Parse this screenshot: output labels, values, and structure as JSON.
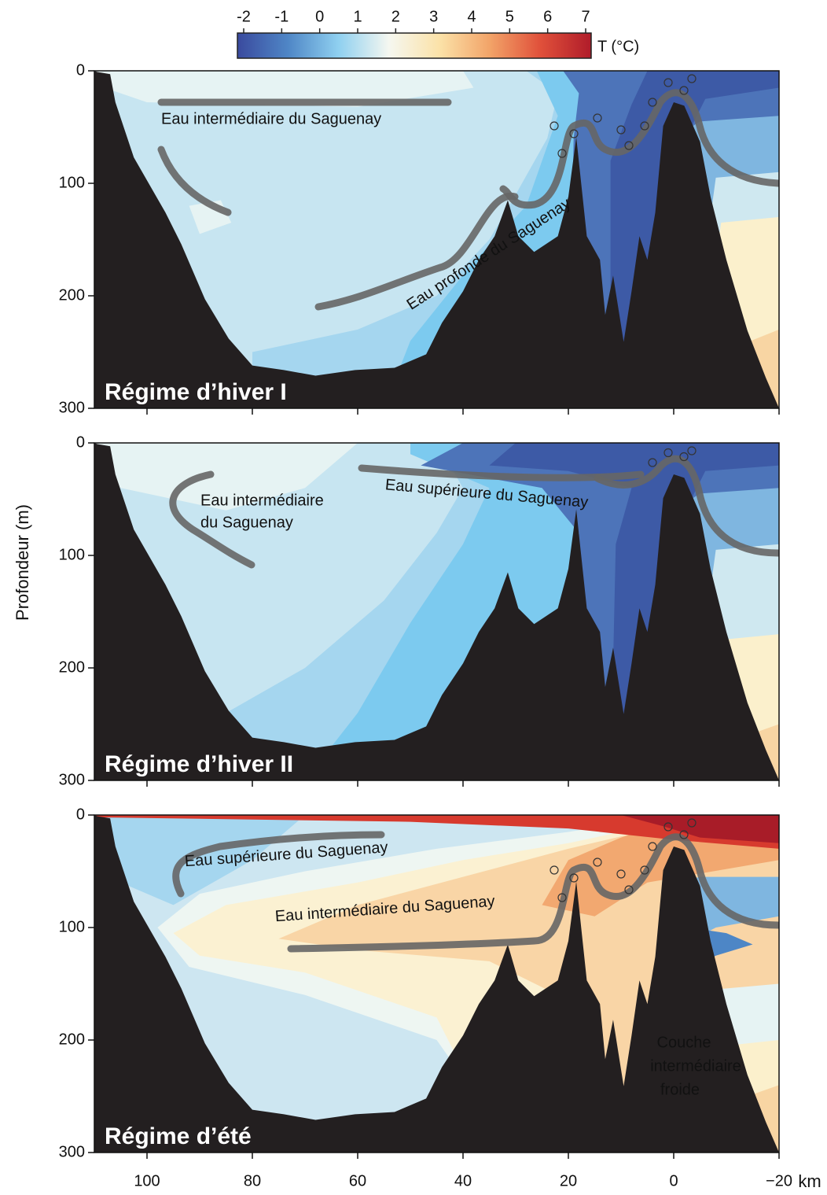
{
  "y_label": "Profondeur (m)",
  "x_unit": "km",
  "colorbar": {
    "label": "T (°C)",
    "lim": [
      -2,
      7
    ],
    "ticks": [
      -2,
      -1,
      0,
      1,
      2,
      3,
      4,
      5,
      6,
      7
    ],
    "colors": [
      "#3a4a9e",
      "#4f86c6",
      "#8fd0f0",
      "#f5f7f0",
      "#fbe2a8",
      "#f2a368",
      "#e0503a",
      "#b01c2a"
    ]
  },
  "chart_data": [
    {
      "type": "section",
      "title": "Régime d’hiver I",
      "xlim": [
        110,
        -20
      ],
      "ylim": [
        0,
        300
      ],
      "yticks": [
        0,
        100,
        200,
        300
      ],
      "annotations": [
        "Eau intermédiaire du Saguenay",
        "Eau profonde du Saguenay"
      ],
      "bathymetry": {
        "x": [
          110,
          109.5,
          107,
          106,
          102.5,
          96.5,
          93.5,
          89,
          84.5,
          80,
          74,
          68,
          60.5,
          53,
          47,
          44,
          40,
          37,
          34,
          31.5,
          29.5,
          26.5,
          22,
          20,
          18.5,
          16.5,
          14,
          13,
          11.5,
          9.5,
          8,
          6.5,
          5,
          3.5,
          2,
          0,
          -2,
          -5,
          -7,
          -10,
          -14,
          -17.5,
          -20
        ],
        "depth": [
          0,
          1,
          3,
          28,
          77,
          126,
          154,
          203,
          238,
          262,
          266,
          271,
          266,
          264,
          252,
          224,
          196,
          168,
          147,
          115,
          147,
          161,
          147,
          112,
          59,
          147,
          168,
          217,
          182,
          241,
          196,
          147,
          168,
          126,
          49,
          28,
          31,
          63,
          112,
          168,
          231,
          273,
          300
        ]
      }
    },
    {
      "type": "section",
      "title": "Régime d’hiver II",
      "xlim": [
        110,
        -20
      ],
      "ylim": [
        0,
        300
      ],
      "yticks": [
        0,
        100,
        200,
        300
      ],
      "annotations": [
        "Eau intermédiaire",
        "du Saguenay",
        "Eau supérieure du Saguenay"
      ],
      "bathymetry": {
        "x": [
          110,
          109.5,
          107,
          106,
          102.5,
          96.5,
          93.5,
          89,
          84.5,
          80,
          74,
          68,
          60.5,
          53,
          47,
          44,
          40,
          37,
          34,
          31.5,
          29.5,
          26.5,
          22,
          20,
          18.5,
          16.5,
          14,
          13,
          11.5,
          9.5,
          8,
          6.5,
          5,
          3.5,
          2,
          0,
          -2,
          -5,
          -7,
          -10,
          -14,
          -17.5,
          -20
        ],
        "depth": [
          0,
          1,
          3,
          28,
          77,
          126,
          154,
          203,
          238,
          262,
          266,
          271,
          266,
          264,
          252,
          224,
          196,
          168,
          147,
          115,
          147,
          161,
          147,
          112,
          59,
          147,
          168,
          217,
          182,
          241,
          196,
          147,
          168,
          126,
          49,
          28,
          31,
          63,
          112,
          168,
          231,
          273,
          300
        ]
      }
    },
    {
      "type": "section",
      "title": "Régime d’été",
      "xlim": [
        110,
        -20
      ],
      "ylim": [
        0,
        300
      ],
      "yticks": [
        0,
        100,
        200,
        300
      ],
      "xticks": [
        100,
        80,
        60,
        40,
        20,
        0,
        {
          "value": -20,
          "label": "−20"
        }
      ],
      "annotations": [
        "Eau supérieure du Saguenay",
        "Eau intermédiaire du Saguenay",
        "Couche",
        "intermédiaire",
        "froide"
      ],
      "bathymetry": {
        "x": [
          110,
          109.5,
          107,
          106,
          102.5,
          96.5,
          93.5,
          89,
          84.5,
          80,
          74,
          68,
          60.5,
          53,
          47,
          44,
          40,
          37,
          34,
          31.5,
          29.5,
          26.5,
          22,
          20,
          18.5,
          16.5,
          14,
          13,
          11.5,
          9.5,
          8,
          6.5,
          5,
          3.5,
          2,
          0,
          -2,
          -5,
          -7,
          -10,
          -14,
          -17.5,
          -20
        ],
        "depth": [
          0,
          1,
          3,
          28,
          77,
          126,
          154,
          203,
          238,
          262,
          266,
          271,
          266,
          264,
          252,
          224,
          196,
          168,
          147,
          115,
          147,
          161,
          147,
          112,
          59,
          147,
          168,
          217,
          182,
          241,
          196,
          147,
          168,
          126,
          49,
          28,
          31,
          63,
          112,
          168,
          231,
          273,
          300
        ]
      }
    }
  ]
}
